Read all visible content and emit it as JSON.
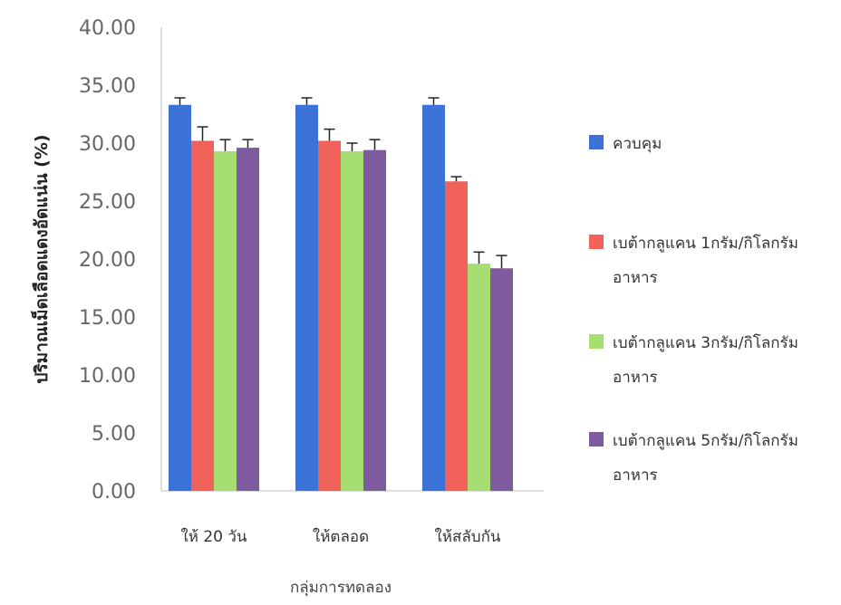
{
  "chart_data": {
    "type": "bar",
    "title": "",
    "xlabel": "กลุ่มการทดลอง",
    "ylabel": "ปริมาณเม็ดเลือดแดงอัดแน่น (%)",
    "ylim": [
      0,
      40
    ],
    "yticks": [
      "0.00",
      "5.00",
      "10.00",
      "15.00",
      "20.00",
      "25.00",
      "30.00",
      "35.00",
      "40.00"
    ],
    "categories": [
      "ให้ 20 วัน",
      "ให้ตลอด",
      "ให้สลับกัน"
    ],
    "series": [
      {
        "name": "ควบคุม",
        "color": "#3b73d6",
        "values": [
          33.3,
          33.3,
          33.3
        ],
        "errors": [
          0.6,
          0.6,
          0.6
        ]
      },
      {
        "name": "เบต้ากลูแคน 1กรัม/กิโลกรัม อาหาร",
        "color": "#f0625a",
        "values": [
          30.2,
          30.2,
          26.7
        ],
        "errors": [
          1.2,
          1.0,
          0.4
        ]
      },
      {
        "name": "เบต้ากลูแคน 3กรัม/กิโลกรัม อาหาร",
        "color": "#a6de72",
        "values": [
          29.3,
          29.3,
          19.6
        ],
        "errors": [
          1.0,
          0.7,
          1.0
        ]
      },
      {
        "name": "เบต้ากลูแคน 5กรัม/กิโลกรัม อาหาร",
        "color": "#7e5a9e",
        "values": [
          29.6,
          29.4,
          19.2
        ],
        "errors": [
          0.7,
          0.9,
          1.1
        ]
      }
    ],
    "legend_position": "right",
    "grid": false
  }
}
